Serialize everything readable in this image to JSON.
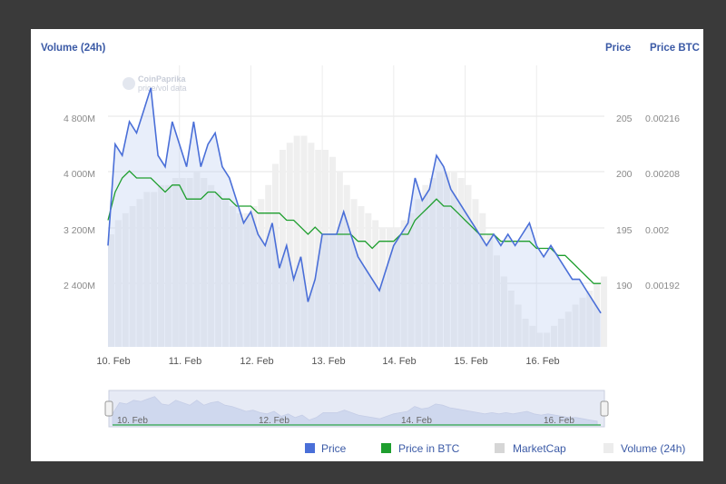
{
  "chart_data": {
    "type": "line",
    "axes": {
      "left_title": "Volume (24h)",
      "right_titles": [
        "Price",
        "Price BTC"
      ],
      "volume_ticks": [
        "4 800M",
        "4 000M",
        "3 200M",
        "2 400M"
      ],
      "price_ticks": [
        "205",
        "200",
        "195",
        "190"
      ],
      "btc_ticks": [
        "0.00216",
        "0.00208",
        "0.002",
        "0.00192"
      ],
      "x_ticks": [
        "10. Feb",
        "11. Feb",
        "12. Feb",
        "13. Feb",
        "14. Feb",
        "15. Feb",
        "16. Feb"
      ],
      "volume_range_M": [
        1600,
        5600
      ],
      "price_range": [
        185,
        210
      ],
      "btc_range": [
        0.00184,
        0.00224
      ],
      "grid": true
    },
    "x_days": [
      10.0,
      10.1,
      10.2,
      10.3,
      10.4,
      10.5,
      10.6,
      10.7,
      10.8,
      10.9,
      11.0,
      11.1,
      11.2,
      11.3,
      11.4,
      11.5,
      11.6,
      11.7,
      11.8,
      11.9,
      12.0,
      12.1,
      12.2,
      12.3,
      12.4,
      12.5,
      12.6,
      12.7,
      12.8,
      12.9,
      13.0,
      13.1,
      13.2,
      13.3,
      13.4,
      13.5,
      13.6,
      13.7,
      13.8,
      13.9,
      14.0,
      14.1,
      14.2,
      14.3,
      14.4,
      14.5,
      14.6,
      14.7,
      14.8,
      14.9,
      15.0,
      15.1,
      15.2,
      15.3,
      15.4,
      15.5,
      15.6,
      15.7,
      15.8,
      15.9,
      16.0,
      16.1,
      16.2,
      16.3,
      16.4,
      16.5,
      16.6,
      16.7,
      16.8,
      16.9
    ],
    "series": [
      {
        "name": "Price",
        "color": "#4a6fd8",
        "axis": "price",
        "values": [
          194,
          203,
          202,
          205,
          204,
          206,
          208,
          202,
          201,
          205,
          203,
          201,
          205,
          201,
          203,
          204,
          201,
          200,
          198,
          196,
          197,
          195,
          194,
          196,
          192,
          194,
          191,
          193,
          189,
          191,
          195,
          195,
          195,
          197,
          195,
          193,
          192,
          191,
          190,
          192,
          194,
          195,
          196,
          200,
          198,
          199,
          202,
          201,
          199,
          198,
          197,
          196,
          195,
          194,
          195,
          194,
          195,
          194,
          195,
          196,
          194,
          193,
          194,
          193,
          192,
          191,
          191,
          190,
          189,
          188
        ]
      },
      {
        "name": "Price in BTC",
        "color": "#1e9e2e",
        "axis": "btc",
        "values": [
          0.00202,
          0.00206,
          0.00208,
          0.00209,
          0.00208,
          0.00208,
          0.00208,
          0.00207,
          0.00206,
          0.00207,
          0.00207,
          0.00205,
          0.00205,
          0.00205,
          0.00206,
          0.00206,
          0.00205,
          0.00205,
          0.00204,
          0.00204,
          0.00204,
          0.00203,
          0.00203,
          0.00203,
          0.00203,
          0.00202,
          0.00202,
          0.00201,
          0.002,
          0.00201,
          0.002,
          0.002,
          0.002,
          0.002,
          0.002,
          0.00199,
          0.00199,
          0.00198,
          0.00199,
          0.00199,
          0.00199,
          0.002,
          0.002,
          0.00202,
          0.00203,
          0.00204,
          0.00205,
          0.00204,
          0.00204,
          0.00203,
          0.00202,
          0.00201,
          0.002,
          0.002,
          0.002,
          0.00199,
          0.00199,
          0.00199,
          0.00199,
          0.00199,
          0.00198,
          0.00198,
          0.00198,
          0.00197,
          0.00197,
          0.00196,
          0.00195,
          0.00194,
          0.00193,
          0.00193
        ]
      },
      {
        "name": "MarketCap",
        "color": "#dcdcdc",
        "axis": "price",
        "values": [
          194,
          203,
          202,
          205,
          204,
          206,
          208,
          202,
          201,
          205,
          203,
          201,
          205,
          201,
          203,
          204,
          201,
          200,
          198,
          196,
          197,
          195,
          194,
          196,
          192,
          194,
          191,
          193,
          189,
          191,
          195,
          195,
          195,
          197,
          195,
          193,
          192,
          191,
          190,
          192,
          194,
          195,
          196,
          200,
          198,
          199,
          202,
          201,
          199,
          198,
          197,
          196,
          195,
          194,
          195,
          194,
          195,
          194,
          195,
          196,
          194,
          193,
          194,
          193,
          192,
          191,
          191,
          190,
          189,
          188
        ]
      },
      {
        "name": "Volume (24h)",
        "color": "#eeeeee",
        "axis": "volume",
        "values": [
          3200,
          3400,
          3500,
          3600,
          3700,
          3800,
          3800,
          3900,
          3900,
          4000,
          4000,
          4000,
          4100,
          4000,
          3900,
          3800,
          3700,
          3600,
          3500,
          3500,
          3600,
          3700,
          3900,
          4200,
          4400,
          4500,
          4600,
          4600,
          4500,
          4400,
          4400,
          4300,
          4100,
          3900,
          3700,
          3600,
          3500,
          3400,
          3300,
          3300,
          3300,
          3400,
          3500,
          3700,
          3900,
          4000,
          4100,
          4100,
          4100,
          4000,
          3900,
          3700,
          3500,
          3200,
          2900,
          2600,
          2400,
          2200,
          2000,
          1900,
          1800,
          1800,
          1900,
          2000,
          2100,
          2200,
          2300,
          2400,
          2500,
          2600
        ]
      }
    ],
    "legend": {
      "placement": "bottom-right",
      "items": [
        "Price",
        "Price in BTC",
        "MarketCap",
        "Volume (24h)"
      ]
    },
    "navigator_ticks": [
      "10. Feb",
      "12. Feb",
      "14. Feb",
      "16. Feb"
    ],
    "watermark": {
      "line1": "CoinPaprika",
      "line2": "price/vol data"
    }
  }
}
